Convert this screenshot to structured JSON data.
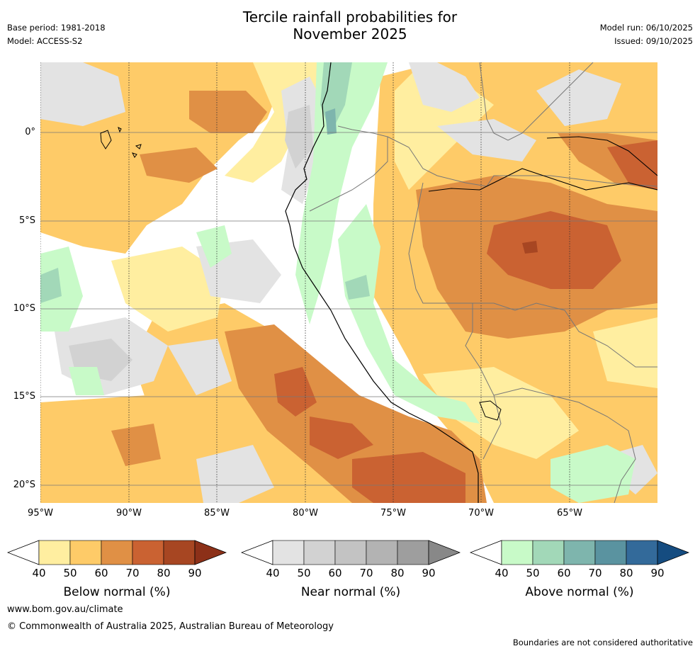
{
  "title_line1": "Tercile rainfall probabilities for",
  "title_line2": "November 2025",
  "base_period": "Base period: 1981-2018",
  "model": "Model: ACCESS-S2",
  "model_run": "Model run: 06/10/2025",
  "issued": "Issued: 09/10/2025",
  "map": {
    "lat_labels": [
      "0°",
      "5°S",
      "10°S",
      "15°S",
      "20°S"
    ],
    "lon_labels": [
      "95°W",
      "90°W",
      "85°W",
      "80°W",
      "75°W",
      "70°W",
      "65°W"
    ]
  },
  "colorbars": [
    {
      "title": "Below normal (%)",
      "ticks": [
        "40",
        "50",
        "60",
        "70",
        "80",
        "90"
      ],
      "colors": [
        "#ffeea0",
        "#fecb68",
        "#e09045",
        "#ca6232",
        "#a74622",
        "#8c3018"
      ]
    },
    {
      "title": "Near normal (%)",
      "ticks": [
        "40",
        "50",
        "60",
        "70",
        "80",
        "90"
      ],
      "colors": [
        "#e3e3e3",
        "#d2d2d2",
        "#c3c3c3",
        "#b3b3b3",
        "#9e9e9e",
        "#888888"
      ]
    },
    {
      "title": "Above normal (%)",
      "ticks": [
        "40",
        "50",
        "60",
        "70",
        "80",
        "90"
      ],
      "colors": [
        "#c8fac8",
        "#a2d8b8",
        "#7eb5ad",
        "#5a93a0",
        "#336a9a",
        "#154c80"
      ]
    }
  ],
  "footer": {
    "url": "www.bom.gov.au/climate",
    "copyright": "© Commonwealth of Australia 2025, Australian Bureau of Meteorology",
    "disclaimer": "Boundaries are not considered authoritative"
  }
}
